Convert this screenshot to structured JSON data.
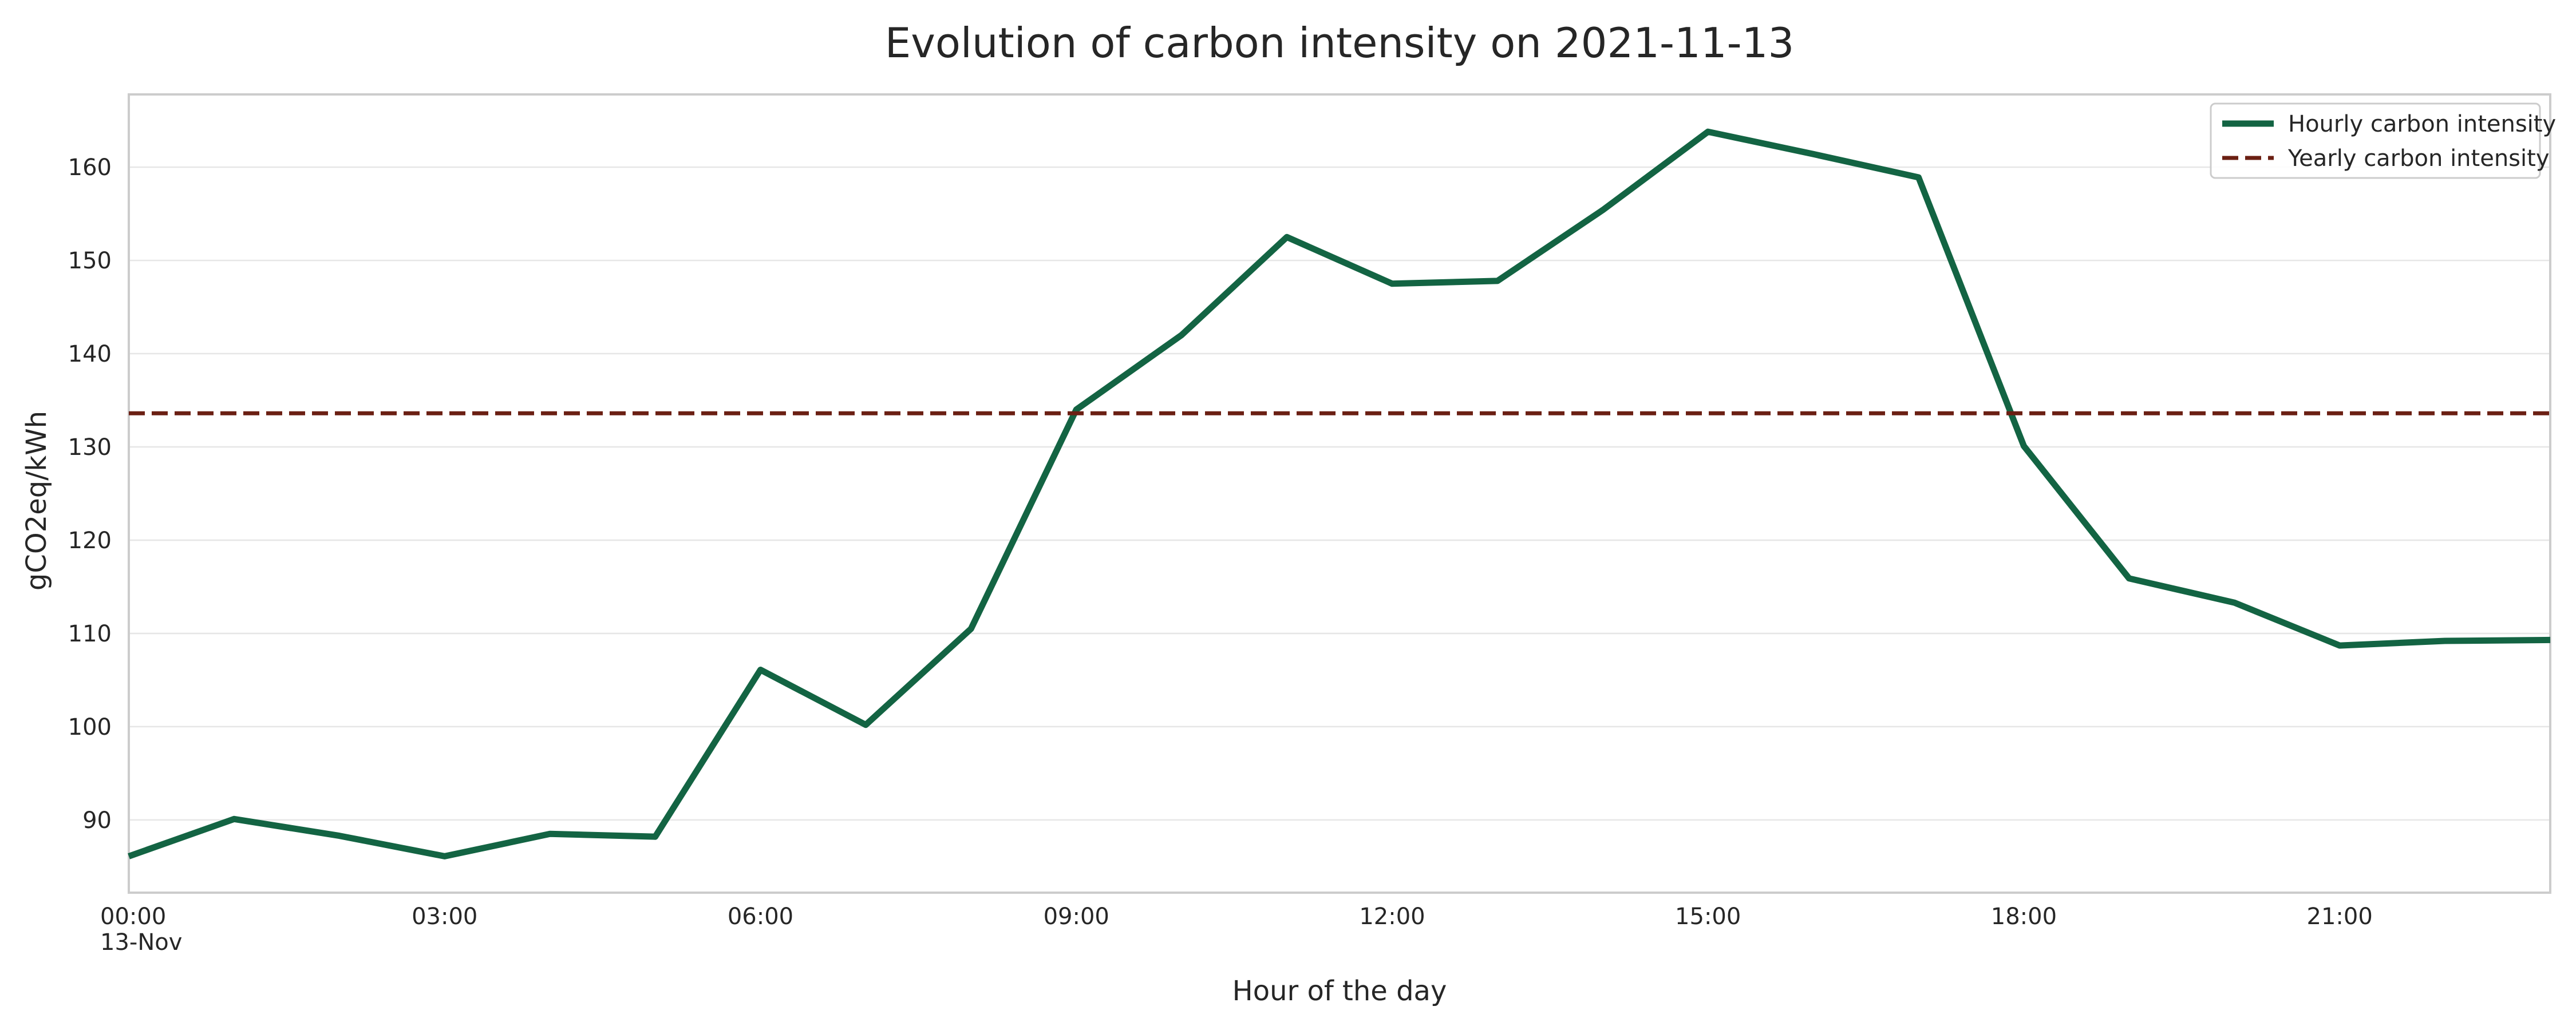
{
  "chart_data": {
    "type": "line",
    "title": "Evolution of carbon intensity on 2021-11-13",
    "xlabel": "Hour of the day",
    "ylabel": "gCO2eq/kWh",
    "x": [
      "00:00",
      "01:00",
      "02:00",
      "03:00",
      "04:00",
      "05:00",
      "06:00",
      "07:00",
      "08:00",
      "09:00",
      "10:00",
      "11:00",
      "12:00",
      "13:00",
      "14:00",
      "15:00",
      "16:00",
      "17:00",
      "18:00",
      "19:00",
      "20:00",
      "21:00",
      "22:00",
      "23:00"
    ],
    "xlim": [
      "00:00",
      "23:00"
    ],
    "ylim": [
      82.2,
      167.8
    ],
    "x_ticks": [
      {
        "hour": "00:00",
        "label": "00:00",
        "sublabel": "13-Nov"
      },
      {
        "hour": "03:00",
        "label": "03:00"
      },
      {
        "hour": "06:00",
        "label": "06:00"
      },
      {
        "hour": "09:00",
        "label": "09:00"
      },
      {
        "hour": "12:00",
        "label": "12:00"
      },
      {
        "hour": "15:00",
        "label": "15:00"
      },
      {
        "hour": "18:00",
        "label": "18:00"
      },
      {
        "hour": "21:00",
        "label": "21:00"
      }
    ],
    "y_ticks": [
      90,
      100,
      110,
      120,
      130,
      140,
      150,
      160
    ],
    "grid": "horizontal",
    "legend_position": "top-right",
    "series": [
      {
        "name": "Hourly carbon intensity",
        "style": "solid",
        "color": "#136443",
        "values": [
          86.1,
          90.1,
          88.3,
          86.1,
          88.5,
          88.2,
          106.1,
          100.2,
          110.5,
          134.0,
          142.0,
          152.5,
          147.5,
          147.8,
          155.4,
          163.8,
          161.4,
          158.9,
          130.1,
          115.9,
          113.3,
          108.7,
          109.2,
          109.3
        ]
      },
      {
        "name": "Yearly carbon intensity",
        "style": "dashed",
        "color": "#6b1f13",
        "values": [
          133.6,
          133.6,
          133.6,
          133.6,
          133.6,
          133.6,
          133.6,
          133.6,
          133.6,
          133.6,
          133.6,
          133.6,
          133.6,
          133.6,
          133.6,
          133.6,
          133.6,
          133.6,
          133.6,
          133.6,
          133.6,
          133.6,
          133.6,
          133.6
        ]
      }
    ]
  }
}
